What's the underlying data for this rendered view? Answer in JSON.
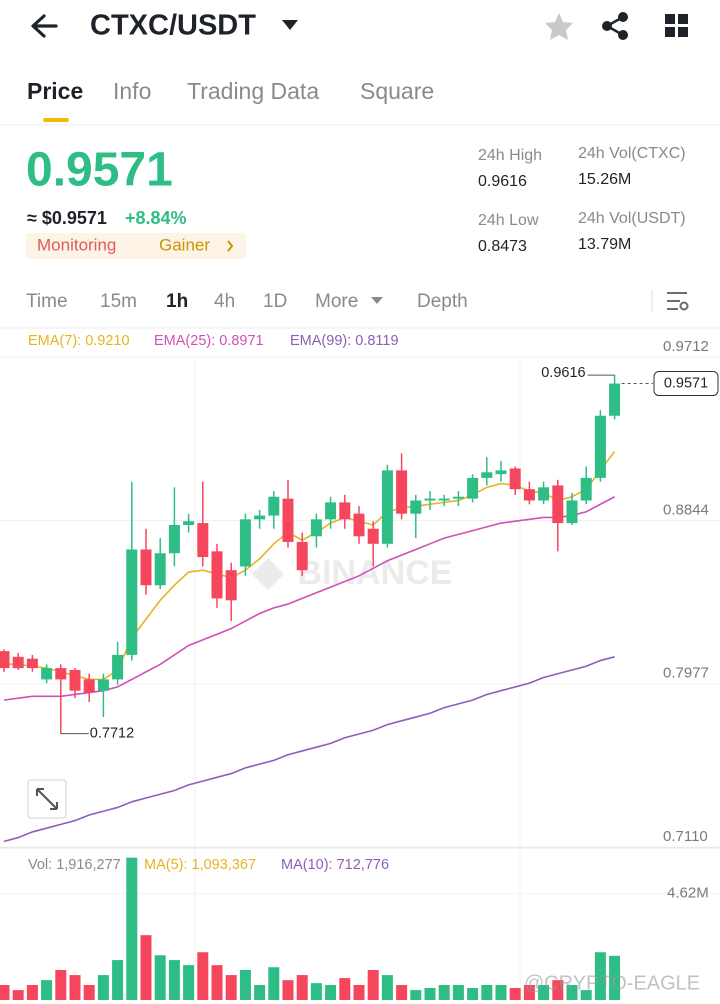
{
  "header": {
    "pair": "CTXC/USDT"
  },
  "tabs": [
    "Price",
    "Info",
    "Trading Data",
    "Square"
  ],
  "ticker": {
    "price": "0.9571",
    "usd": "≈ $0.9571",
    "change": "+8.84%",
    "badges": [
      "Monitoring",
      "Gainer"
    ]
  },
  "stats": [
    {
      "label": "24h High",
      "value": "0.9616"
    },
    {
      "label": "24h Vol(CTXC)",
      "value": "15.26M"
    },
    {
      "label": "24h Low",
      "value": "0.8473"
    },
    {
      "label": "24h Vol(USDT)",
      "value": "13.79M"
    }
  ],
  "intervals": [
    "Time",
    "15m",
    "1h",
    "4h",
    "1D",
    "More",
    "Depth"
  ],
  "chart_data": {
    "type": "candlestick",
    "up_color": "#2ebd85",
    "down_color": "#f6465d",
    "open": [
      0.815,
      0.812,
      0.811,
      0.8,
      0.806,
      0.805,
      0.8,
      0.794,
      0.8,
      0.813,
      0.869,
      0.85,
      0.867,
      0.882,
      0.883,
      0.868,
      0.858,
      0.86,
      0.885,
      0.887,
      0.896,
      0.873,
      0.876,
      0.885,
      0.894,
      0.888,
      0.88,
      0.872,
      0.911,
      0.888,
      0.895,
      0.895,
      0.896,
      0.896,
      0.907,
      0.909,
      0.912,
      0.901,
      0.895,
      0.903,
      0.883,
      0.895,
      0.907,
      0.94
    ],
    "high": [
      0.816,
      0.814,
      0.813,
      0.808,
      0.808,
      0.806,
      0.803,
      0.803,
      0.82,
      0.905,
      0.88,
      0.875,
      0.902,
      0.888,
      0.905,
      0.872,
      0.862,
      0.888,
      0.89,
      0.9,
      0.906,
      0.878,
      0.888,
      0.897,
      0.898,
      0.892,
      0.884,
      0.914,
      0.92,
      0.898,
      0.9,
      0.898,
      0.9,
      0.909,
      0.918,
      0.916,
      0.913,
      0.905,
      0.905,
      0.906,
      0.899,
      0.913,
      0.943,
      0.9616
    ],
    "low": [
      0.804,
      0.805,
      0.804,
      0.798,
      0.7712,
      0.79,
      0.788,
      0.78,
      0.797,
      0.81,
      0.845,
      0.848,
      0.86,
      0.878,
      0.86,
      0.838,
      0.831,
      0.855,
      0.88,
      0.88,
      0.87,
      0.855,
      0.87,
      0.88,
      0.88,
      0.872,
      0.86,
      0.87,
      0.885,
      0.875,
      0.89,
      0.892,
      0.892,
      0.894,
      0.903,
      0.905,
      0.898,
      0.893,
      0.893,
      0.868,
      0.882,
      0.893,
      0.905,
      0.938
    ],
    "close": [
      0.806,
      0.806,
      0.806,
      0.806,
      0.8,
      0.794,
      0.793,
      0.8,
      0.813,
      0.869,
      0.85,
      0.867,
      0.882,
      0.884,
      0.865,
      0.843,
      0.842,
      0.885,
      0.887,
      0.897,
      0.873,
      0.858,
      0.885,
      0.894,
      0.885,
      0.876,
      0.872,
      0.911,
      0.888,
      0.895,
      0.896,
      0.896,
      0.897,
      0.907,
      0.91,
      0.911,
      0.901,
      0.895,
      0.902,
      0.883,
      0.895,
      0.907,
      0.94,
      0.9571
    ],
    "series": [
      {
        "name": "EMA(7): 0.9210",
        "color": "#e6b422",
        "values": [
          0.808,
          0.808,
          0.807,
          0.806,
          0.804,
          0.802,
          0.8,
          0.8,
          0.805,
          0.822,
          0.832,
          0.842,
          0.85,
          0.857,
          0.858,
          0.856,
          0.854,
          0.858,
          0.864,
          0.872,
          0.878,
          0.874,
          0.878,
          0.883,
          0.886,
          0.884,
          0.882,
          0.889,
          0.891,
          0.892,
          0.893,
          0.894,
          0.895,
          0.898,
          0.902,
          0.904,
          0.903,
          0.9,
          0.899,
          0.895,
          0.897,
          0.901,
          0.911,
          0.921
        ]
      },
      {
        "name": "EMA(25): 0.8971",
        "color": "#d24fb8",
        "values": [
          0.789,
          0.79,
          0.791,
          0.791,
          0.791,
          0.792,
          0.793,
          0.794,
          0.796,
          0.8,
          0.804,
          0.808,
          0.813,
          0.818,
          0.821,
          0.824,
          0.827,
          0.831,
          0.835,
          0.838,
          0.84,
          0.843,
          0.846,
          0.849,
          0.852,
          0.855,
          0.859,
          0.863,
          0.866,
          0.869,
          0.872,
          0.875,
          0.877,
          0.879,
          0.881,
          0.883,
          0.884,
          0.885,
          0.886,
          0.886,
          0.887,
          0.889,
          0.893,
          0.897
        ]
      },
      {
        "name": "EMA(99): 0.8119",
        "color": "#8e5fb5",
        "values": [
          0.714,
          0.716,
          0.719,
          0.721,
          0.723,
          0.725,
          0.728,
          0.73,
          0.732,
          0.735,
          0.737,
          0.739,
          0.741,
          0.744,
          0.746,
          0.748,
          0.75,
          0.753,
          0.755,
          0.757,
          0.76,
          0.762,
          0.764,
          0.766,
          0.769,
          0.771,
          0.773,
          0.776,
          0.778,
          0.78,
          0.782,
          0.785,
          0.787,
          0.789,
          0.792,
          0.794,
          0.796,
          0.798,
          0.801,
          0.803,
          0.805,
          0.807,
          0.81,
          0.812
        ]
      }
    ],
    "ylim": [
      0.711,
      0.9712
    ],
    "yticks": [
      0.9712,
      0.8844,
      0.7977,
      {
        "value": 0.711,
        "label": "0.7110"
      }
    ],
    "high_label": "0.9616",
    "low_label": "0.7712",
    "last_label": "0.9571",
    "watermark": "BINANCE"
  },
  "volume": {
    "type": "bar",
    "legend": [
      {
        "text": "Vol: 1,916,277",
        "color": "#8a8a8a"
      },
      {
        "text": "MA(5): 1,093,367",
        "color": "#e6b422"
      },
      {
        "text": "MA(10): 712,776",
        "color": "#8e5fb5"
      }
    ],
    "values": [
      650000,
      430000,
      650000,
      860000,
      1300000,
      1080000,
      650000,
      1080000,
      1730000,
      6170000,
      2810000,
      1940000,
      1730000,
      1510000,
      2070000,
      1510000,
      1080000,
      1300000,
      650000,
      1420000,
      860000,
      1080000,
      730000,
      650000,
      950000,
      650000,
      1300000,
      1080000,
      650000,
      430000,
      520000,
      650000,
      650000,
      520000,
      650000,
      650000,
      520000,
      650000,
      650000,
      860000,
      650000,
      430000,
      2070000,
      1916277
    ],
    "ylim": [
      0,
      6500000
    ],
    "yticks": [
      {
        "value": 4620000,
        "label": "4.62M"
      }
    ]
  },
  "credit": "@CRYPTO-EAGLE"
}
